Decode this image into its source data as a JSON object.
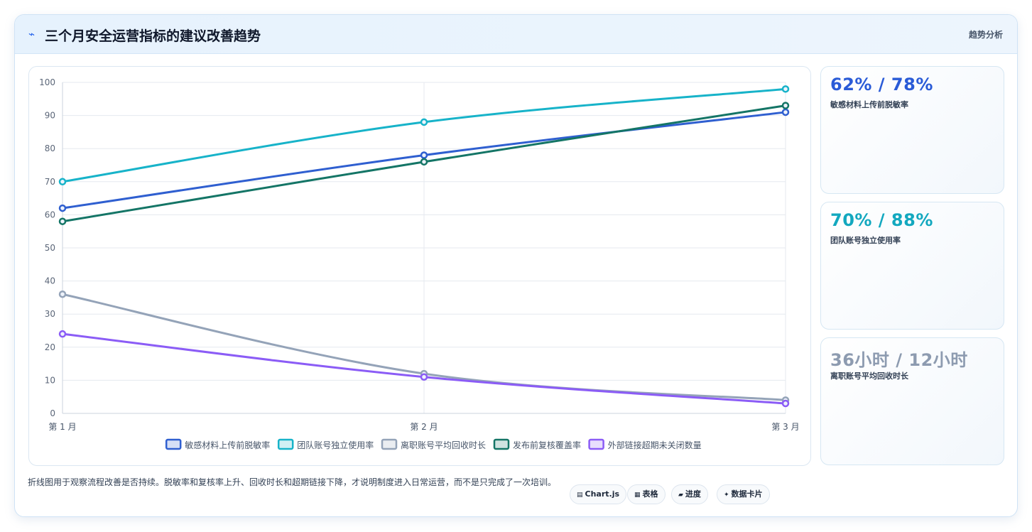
{
  "header": {
    "icon": "lightning-icon",
    "title": "三个月安全运营指标的建议改善趋势",
    "link_label": "趋势分析"
  },
  "chart_data": {
    "type": "line",
    "categories": [
      "第 1 月",
      "第 2 月",
      "第 3 月"
    ],
    "ylim": [
      0,
      100
    ],
    "yticks": [
      0,
      10,
      20,
      30,
      40,
      50,
      60,
      70,
      80,
      90,
      100
    ],
    "grid": true,
    "legend_position": "bottom",
    "series": [
      {
        "name": "敏感材料上传前脱敏率",
        "values": [
          62,
          78,
          91
        ],
        "color": "#2f5fd0"
      },
      {
        "name": "团队账号独立使用率",
        "values": [
          70,
          88,
          98
        ],
        "color": "#17b3c9"
      },
      {
        "name": "离职账号平均回收时长",
        "values": [
          36,
          12,
          4
        ],
        "color": "#94a3b8"
      },
      {
        "name": "发布前复核覆盖率",
        "values": [
          58,
          76,
          93
        ],
        "color": "#147566"
      },
      {
        "name": "外部链接超期未关闭数量",
        "values": [
          24,
          11,
          3
        ],
        "color": "#8b5cf6"
      }
    ]
  },
  "kpis": [
    {
      "value": "62% / 78%",
      "label": "敏感材料上传前脱敏率",
      "color": "#2a5bd7"
    },
    {
      "value": "70% / 88%",
      "label": "团队账号独立使用率",
      "color": "#13a8bf"
    },
    {
      "value": "36小时 / 12小时",
      "label": "离职账号平均回收时长",
      "color": "#8d9bb0"
    }
  ],
  "footer": {
    "note": "折线图用于观察流程改善是否持续。脱敏率和复核率上升、回收时长和超期链接下降，才说明制度进入日常运营，而不是只完成了一次培训。"
  },
  "chips": [
    {
      "icon": "chart-icon",
      "glyph": "▤",
      "label": "Chart.js"
    },
    {
      "icon": "table-icon",
      "glyph": "▦",
      "label": "表格"
    },
    {
      "icon": "progress-icon",
      "glyph": "▰",
      "label": "进度"
    },
    {
      "icon": "sparkle-icon",
      "glyph": "✦",
      "label": "数据卡片"
    }
  ]
}
